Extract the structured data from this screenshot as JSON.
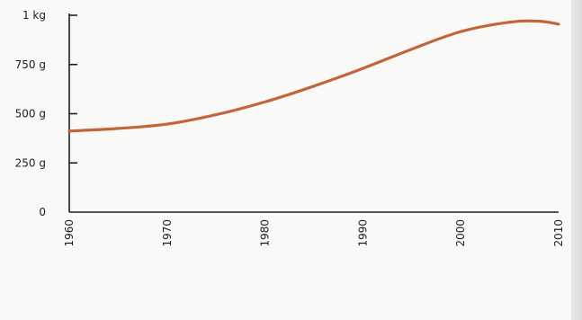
{
  "chart_data": {
    "type": "line",
    "x": [
      1960,
      1965,
      1970,
      1975,
      1980,
      1985,
      1990,
      1995,
      2000,
      2005,
      2008,
      2010
    ],
    "series": [
      {
        "values": [
          412,
          425,
          447,
          495,
          560,
          640,
          730,
          828,
          917,
          965,
          970,
          955
        ]
      }
    ],
    "xlim": [
      1960,
      2010
    ],
    "ylim": [
      0,
      1000
    ],
    "x_ticks": [
      {
        "value": 1960,
        "label": "1960"
      },
      {
        "value": 1970,
        "label": "1970"
      },
      {
        "value": 1980,
        "label": "1980"
      },
      {
        "value": 1990,
        "label": "1990"
      },
      {
        "value": 2000,
        "label": "2000"
      },
      {
        "value": 2010,
        "label": "2010"
      }
    ],
    "y_ticks": [
      {
        "value": 0,
        "label": "0"
      },
      {
        "value": 250,
        "label": "250 g"
      },
      {
        "value": 500,
        "label": "500 g"
      },
      {
        "value": 750,
        "label": "750 g"
      },
      {
        "value": 1000,
        "label": "1 kg"
      }
    ],
    "x_tick_rotation": "vertical",
    "grid": false,
    "legend": "none",
    "line_color": "#c4643a",
    "axis_color": "#1e1e1e"
  }
}
